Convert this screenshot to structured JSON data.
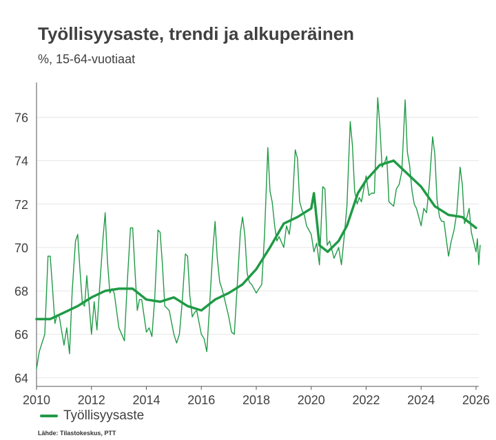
{
  "title": "Työllisyysaste, trendi ja alkuperäinen",
  "subtitle": "%, 15-64-vuotiaat",
  "source": "Lähde: Tilastokeskus, PTT",
  "colors": {
    "line": "#1f9a45",
    "axis": "#555555",
    "grid": "#e6e6e6",
    "text": "#404040"
  },
  "chart_data": {
    "type": "line",
    "title": "Työllisyysaste, trendi ja alkuperäinen",
    "subtitle": "%, 15-64-vuotiaat",
    "xlabel": "",
    "ylabel": "",
    "xlim": [
      2010,
      2026.1
    ],
    "ylim": [
      63.6,
      77.6
    ],
    "xticks": [
      2010,
      2012,
      2014,
      2016,
      2018,
      2020,
      2022,
      2024,
      2026
    ],
    "yticks": [
      64,
      66,
      68,
      70,
      72,
      74,
      76
    ],
    "grid": true,
    "legend": "bottom-left",
    "series": [
      {
        "name": "Työllisyysaste",
        "style": "trend",
        "points": [
          [
            2010.0,
            66.7
          ],
          [
            2010.5,
            66.7
          ],
          [
            2011.0,
            67.0
          ],
          [
            2011.5,
            67.3
          ],
          [
            2012.0,
            67.7
          ],
          [
            2012.5,
            68.0
          ],
          [
            2013.0,
            68.1
          ],
          [
            2013.5,
            68.1
          ],
          [
            2014.0,
            67.6
          ],
          [
            2014.5,
            67.5
          ],
          [
            2015.0,
            67.7
          ],
          [
            2015.5,
            67.3
          ],
          [
            2016.0,
            67.1
          ],
          [
            2016.5,
            67.6
          ],
          [
            2017.0,
            67.9
          ],
          [
            2017.5,
            68.3
          ],
          [
            2018.0,
            69.0
          ],
          [
            2018.5,
            70.0
          ],
          [
            2019.0,
            71.1
          ],
          [
            2019.5,
            71.4
          ],
          [
            2020.0,
            71.8
          ],
          [
            2020.1,
            72.5
          ],
          [
            2020.3,
            70.1
          ],
          [
            2020.6,
            69.8
          ],
          [
            2021.0,
            70.3
          ],
          [
            2021.3,
            71.0
          ],
          [
            2021.7,
            72.5
          ],
          [
            2022.0,
            73.1
          ],
          [
            2022.5,
            73.8
          ],
          [
            2023.0,
            74.0
          ],
          [
            2023.5,
            73.4
          ],
          [
            2024.0,
            72.8
          ],
          [
            2024.5,
            71.9
          ],
          [
            2025.0,
            71.5
          ],
          [
            2025.5,
            71.4
          ],
          [
            2026.0,
            70.9
          ]
        ]
      },
      {
        "name": "",
        "style": "original",
        "points": [
          [
            2010.0,
            64.4
          ],
          [
            2010.1,
            65.2
          ],
          [
            2010.3,
            66.0
          ],
          [
            2010.42,
            69.6
          ],
          [
            2010.5,
            69.6
          ],
          [
            2010.58,
            68.2
          ],
          [
            2010.67,
            66.5
          ],
          [
            2010.75,
            66.9
          ],
          [
            2010.83,
            66.8
          ],
          [
            2011.0,
            65.5
          ],
          [
            2011.1,
            66.3
          ],
          [
            2011.2,
            65.1
          ],
          [
            2011.3,
            68.0
          ],
          [
            2011.42,
            70.3
          ],
          [
            2011.5,
            70.6
          ],
          [
            2011.58,
            69.0
          ],
          [
            2011.67,
            67.4
          ],
          [
            2011.75,
            67.3
          ],
          [
            2011.83,
            68.7
          ],
          [
            2012.0,
            66.0
          ],
          [
            2012.1,
            67.5
          ],
          [
            2012.2,
            66.2
          ],
          [
            2012.3,
            68.2
          ],
          [
            2012.42,
            70.4
          ],
          [
            2012.5,
            71.6
          ],
          [
            2012.58,
            69.4
          ],
          [
            2012.67,
            67.9
          ],
          [
            2012.75,
            68.1
          ],
          [
            2012.83,
            67.9
          ],
          [
            2013.0,
            66.3
          ],
          [
            2013.1,
            66.0
          ],
          [
            2013.2,
            65.7
          ],
          [
            2013.3,
            68.3
          ],
          [
            2013.42,
            70.9
          ],
          [
            2013.5,
            70.9
          ],
          [
            2013.58,
            69.0
          ],
          [
            2013.67,
            67.1
          ],
          [
            2013.75,
            67.6
          ],
          [
            2013.83,
            67.6
          ],
          [
            2014.0,
            66.1
          ],
          [
            2014.1,
            66.3
          ],
          [
            2014.2,
            65.9
          ],
          [
            2014.3,
            67.6
          ],
          [
            2014.42,
            70.8
          ],
          [
            2014.5,
            70.7
          ],
          [
            2014.58,
            69.3
          ],
          [
            2014.67,
            67.3
          ],
          [
            2014.75,
            67.2
          ],
          [
            2014.83,
            67.1
          ],
          [
            2015.0,
            66.0
          ],
          [
            2015.1,
            65.6
          ],
          [
            2015.2,
            66.0
          ],
          [
            2015.3,
            67.4
          ],
          [
            2015.42,
            69.7
          ],
          [
            2015.5,
            69.6
          ],
          [
            2015.58,
            67.8
          ],
          [
            2015.67,
            66.8
          ],
          [
            2015.75,
            67.0
          ],
          [
            2015.83,
            67.1
          ],
          [
            2016.0,
            66.0
          ],
          [
            2016.1,
            65.8
          ],
          [
            2016.2,
            65.2
          ],
          [
            2016.3,
            67.3
          ],
          [
            2016.42,
            69.9
          ],
          [
            2016.5,
            71.2
          ],
          [
            2016.58,
            69.5
          ],
          [
            2016.67,
            68.4
          ],
          [
            2016.75,
            68.1
          ],
          [
            2016.83,
            67.7
          ],
          [
            2017.0,
            66.8
          ],
          [
            2017.1,
            66.1
          ],
          [
            2017.2,
            66.0
          ],
          [
            2017.3,
            68.1
          ],
          [
            2017.42,
            70.7
          ],
          [
            2017.5,
            71.4
          ],
          [
            2017.58,
            70.6
          ],
          [
            2017.67,
            68.8
          ],
          [
            2017.75,
            68.4
          ],
          [
            2017.83,
            68.3
          ],
          [
            2018.0,
            67.9
          ],
          [
            2018.1,
            68.1
          ],
          [
            2018.2,
            68.3
          ],
          [
            2018.3,
            70.6
          ],
          [
            2018.42,
            74.6
          ],
          [
            2018.5,
            72.6
          ],
          [
            2018.58,
            72.1
          ],
          [
            2018.67,
            71.0
          ],
          [
            2018.75,
            70.3
          ],
          [
            2018.83,
            70.5
          ],
          [
            2019.0,
            70.0
          ],
          [
            2019.1,
            71.0
          ],
          [
            2019.2,
            70.6
          ],
          [
            2019.3,
            71.6
          ],
          [
            2019.42,
            74.5
          ],
          [
            2019.5,
            74.1
          ],
          [
            2019.58,
            72.1
          ],
          [
            2019.67,
            71.7
          ],
          [
            2019.75,
            71.5
          ],
          [
            2019.83,
            71.0
          ],
          [
            2020.0,
            70.6
          ],
          [
            2020.1,
            69.8
          ],
          [
            2020.2,
            70.2
          ],
          [
            2020.3,
            69.2
          ],
          [
            2020.42,
            72.8
          ],
          [
            2020.5,
            72.7
          ],
          [
            2020.58,
            70.1
          ],
          [
            2020.67,
            70.3
          ],
          [
            2020.75,
            69.9
          ],
          [
            2020.83,
            69.5
          ],
          [
            2021.0,
            70.0
          ],
          [
            2021.1,
            69.2
          ],
          [
            2021.2,
            70.5
          ],
          [
            2021.3,
            71.9
          ],
          [
            2021.42,
            75.8
          ],
          [
            2021.5,
            74.7
          ],
          [
            2021.58,
            72.6
          ],
          [
            2021.67,
            72.0
          ],
          [
            2021.75,
            72.3
          ],
          [
            2021.83,
            72.1
          ],
          [
            2022.0,
            73.3
          ],
          [
            2022.1,
            72.4
          ],
          [
            2022.2,
            72.5
          ],
          [
            2022.3,
            72.5
          ],
          [
            2022.42,
            76.9
          ],
          [
            2022.5,
            75.6
          ],
          [
            2022.58,
            73.7
          ],
          [
            2022.67,
            73.9
          ],
          [
            2022.75,
            74.2
          ],
          [
            2022.83,
            72.1
          ],
          [
            2023.0,
            71.9
          ],
          [
            2023.1,
            72.7
          ],
          [
            2023.2,
            72.9
          ],
          [
            2023.3,
            73.5
          ],
          [
            2023.42,
            76.8
          ],
          [
            2023.5,
            74.4
          ],
          [
            2023.58,
            73.8
          ],
          [
            2023.67,
            72.6
          ],
          [
            2023.75,
            72.0
          ],
          [
            2023.83,
            71.8
          ],
          [
            2024.0,
            71.0
          ],
          [
            2024.1,
            71.8
          ],
          [
            2024.2,
            71.6
          ],
          [
            2024.3,
            72.9
          ],
          [
            2024.42,
            75.1
          ],
          [
            2024.5,
            74.3
          ],
          [
            2024.58,
            72.2
          ],
          [
            2024.67,
            71.4
          ],
          [
            2024.75,
            71.2
          ],
          [
            2024.83,
            71.2
          ],
          [
            2025.0,
            69.6
          ],
          [
            2025.1,
            70.3
          ],
          [
            2025.2,
            70.8
          ],
          [
            2025.3,
            71.6
          ],
          [
            2025.42,
            73.7
          ],
          [
            2025.5,
            72.9
          ],
          [
            2025.58,
            71.1
          ],
          [
            2025.67,
            71.4
          ],
          [
            2025.75,
            71.8
          ],
          [
            2025.83,
            70.7
          ],
          [
            2026.0,
            69.8
          ],
          [
            2026.05,
            70.4
          ],
          [
            2026.1,
            69.2
          ],
          [
            2026.15,
            70.1
          ]
        ]
      }
    ]
  }
}
